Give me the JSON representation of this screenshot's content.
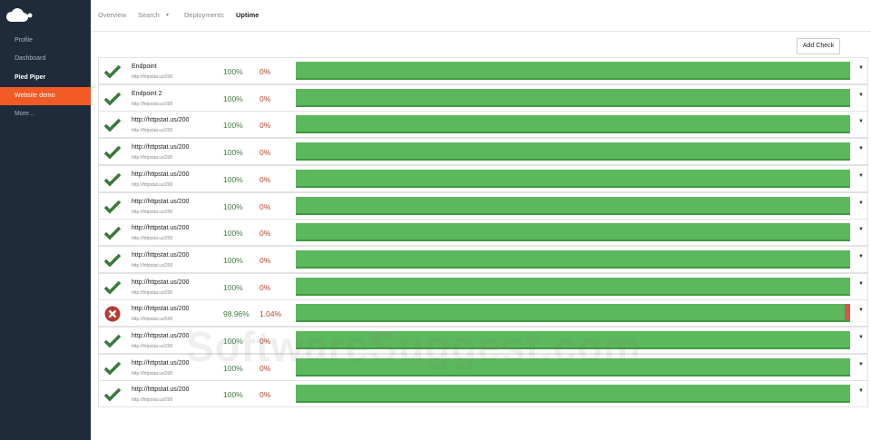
{
  "sidebar": {
    "items": [
      {
        "label": "Profile"
      },
      {
        "label": "Dashboard"
      },
      {
        "label": "Pied Piper"
      },
      {
        "label": "Website demo"
      },
      {
        "label": "More..."
      }
    ]
  },
  "topnav": {
    "items": [
      "Overview",
      "Search",
      "Deployments",
      "Uptime"
    ]
  },
  "toolbar": {
    "button": "Add Check"
  },
  "checks": [
    {
      "name": "Endpoint",
      "url": "http://httpstat.us/200",
      "uptime": "100%",
      "downtime": "0%"
    },
    {
      "name": "Endpoint 2",
      "url": "http://httpstat.us/200",
      "uptime": "100%",
      "downtime": "0%"
    },
    {
      "name": "http://httpstat.us/200",
      "url": "http://httpstat.us/200",
      "uptime": "100%",
      "downtime": "0%"
    },
    {
      "name": "http://httpstat.us/200",
      "url": "http://httpstat.us/200",
      "uptime": "100%",
      "downtime": "0%"
    },
    {
      "name": "http://httpstat.us/200",
      "url": "http://httpstat.us/200",
      "uptime": "100%",
      "downtime": "0%"
    },
    {
      "name": "http://httpstat.us/200",
      "url": "http://httpstat.us/200",
      "uptime": "100%",
      "downtime": "0%"
    },
    {
      "name": "http://httpstat.us/200",
      "url": "http://httpstat.us/200",
      "uptime": "100%",
      "downtime": "0%"
    },
    {
      "name": "http://httpstat.us/200",
      "url": "http://httpstat.us/200",
      "uptime": "100%",
      "downtime": "0%"
    },
    {
      "name": "http://httpstat.us/200",
      "url": "http://httpstat.us/200",
      "uptime": "100%",
      "downtime": "0%"
    },
    {
      "name": "http://httpstat.us/200",
      "url": "http://httpstat.us/500",
      "uptime": "98.96%",
      "downtime": "1.04%"
    },
    {
      "name": "http://httpstat.us/200",
      "url": "http://httpstat.us/200",
      "uptime": "100%",
      "downtime": "0%"
    },
    {
      "name": "http://httpstat.us/200",
      "url": "http://httpstat.us/200",
      "uptime": "100%",
      "downtime": "0%"
    },
    {
      "name": "http://httpstat.us/200",
      "url": "http://httpstat.us/200",
      "uptime": "100%",
      "downtime": "0%"
    }
  ],
  "watermark": "SoftwareSuggest.com"
}
